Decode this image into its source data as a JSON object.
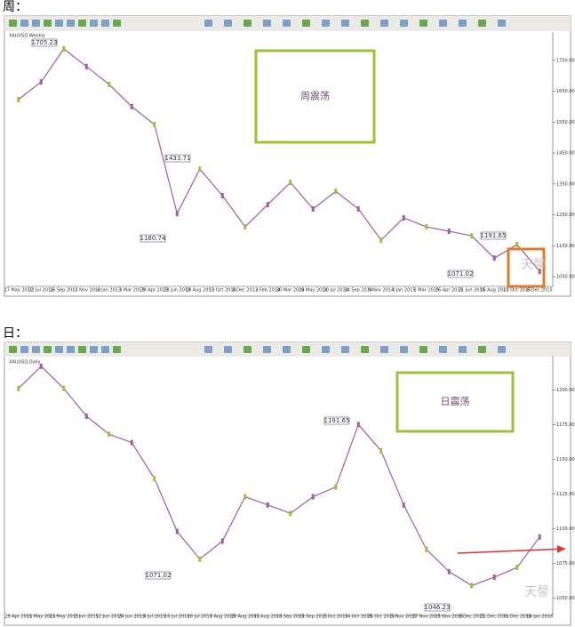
{
  "chart_data": [
    {
      "type": "line",
      "title": "周：",
      "box_label": "周震荡",
      "watermark": "天謦",
      "categories": [
        "27 May 2012",
        "22 Jul 2012",
        "16 Sep 2012",
        "11 Nov 2012",
        "6 Jan 2013",
        "3 Mar 2013",
        "28 Apr 2013",
        "23 Jun 2013",
        "18 Aug 2013",
        "13 Oct 2013",
        "8 Dec 2013",
        "2 Feb 2014",
        "30 Mar 2014",
        "25 May 2014",
        "20 Jul 2014",
        "14 Sep 2014",
        "9 Nov 2014",
        "4 Jan 2015",
        "1 Mar 2015",
        "26 Apr 2015",
        "21 Jun 2015",
        "16 Aug 2015",
        "11 Oct 2015",
        "6 Dec 2015"
      ],
      "series": [
        {
          "name": "XAUUSD,Weekly",
          "color": "#a55ca5",
          "values": [
            1623,
            1680,
            1787,
            1730,
            1672,
            1600,
            1542,
            1254,
            1398,
            1312,
            1211,
            1283,
            1355,
            1269,
            1326,
            1269,
            1168,
            1240,
            1211,
            1197,
            1182,
            1110,
            1154,
            1067
          ]
        }
      ],
      "annotations": [
        "1705.23",
        "1433.71",
        "1180.74",
        "1191.65",
        "1071.02"
      ],
      "ylim": [
        1030,
        1830
      ],
      "yticks": [
        {
          "value": 1050,
          "label": "1050.00"
        },
        {
          "value": 1150,
          "label": "1150.00"
        },
        {
          "value": 1250,
          "label": "1250.00"
        },
        {
          "value": 1350,
          "label": "1350.00"
        },
        {
          "value": 1450,
          "label": "1450.00"
        },
        {
          "value": 1550,
          "label": "1550.00"
        },
        {
          "value": 1650,
          "label": "1650.00"
        },
        {
          "value": 1750,
          "label": "1750.00"
        }
      ]
    },
    {
      "type": "line",
      "title": "日：",
      "box_label": "日震荡",
      "watermark": "天謦",
      "categories": [
        "29 Apr 2015",
        "11 May 2015",
        "21 May 2015",
        "2 Jun 2015",
        "12 Jun 2015",
        "24 Jun 2015",
        "6 Jul 2015",
        "16 Jul 2015",
        "28 Jul 2015",
        "7 Aug 2015",
        "19 Aug 2015",
        "31 Aug 2015",
        "10 Sep 2015",
        "22 Sep 2015",
        "2 Oct 2015",
        "14 Oct 2015",
        "26 Oct 2015",
        "5 Nov 2015",
        "17 Nov 2015",
        "27 Nov 2015",
        "9 Dec 2015",
        "21 Dec 2015",
        "31 Dec 2015",
        "14 Jan 2016"
      ],
      "series": [
        {
          "name": "XAUUSD,Daily",
          "color": "#a55ca5",
          "values": [
            1201,
            1217,
            1201,
            1181,
            1168,
            1162,
            1136,
            1098,
            1078,
            1091,
            1123,
            1117,
            1111,
            1123,
            1130,
            1175,
            1156,
            1117,
            1085,
            1069,
            1059,
            1065,
            1072,
            1094
          ]
        }
      ],
      "annotations": [
        "1191.65",
        "1071.02",
        "1046.23"
      ],
      "ylim": [
        1040,
        1222
      ],
      "yticks": [
        {
          "value": 1050,
          "label": "1050.00"
        },
        {
          "value": 1075,
          "label": "1075.00"
        },
        {
          "value": 1100,
          "label": "1100.00"
        },
        {
          "value": 1125,
          "label": "1125.00"
        },
        {
          "value": 1150,
          "label": "1150.00"
        },
        {
          "value": 1175,
          "label": "1175.00"
        },
        {
          "value": 1200,
          "label": "1200.00"
        }
      ]
    }
  ]
}
